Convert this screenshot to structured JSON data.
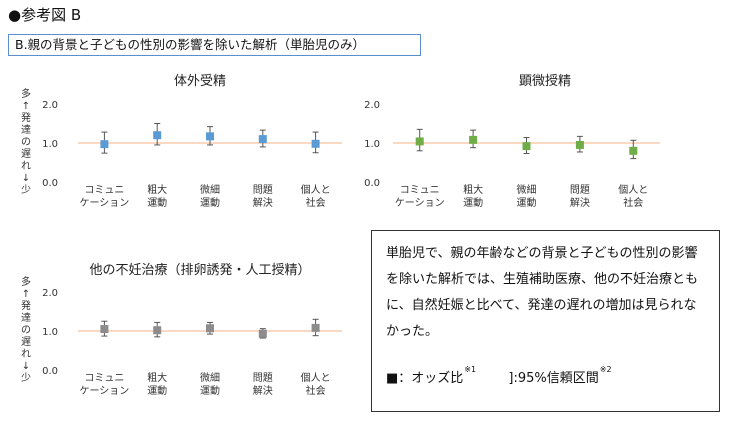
{
  "heading": "●参考図 B",
  "subtitle": "B.親の背景と子どもの性別の影響を除いた解析（単胎児のみ）",
  "y_axis_label": "多↑発達の遅れ↓少",
  "note": {
    "text": "単胎児で、親の年齢などの背景と子どもの性別の影響を除いた解析では、生殖補助医療、他の不妊治療ともに、自然妊娠と比べて、発達の遅れの増加は見られなかった。",
    "legend_marker": "■：オッズ比",
    "legend_marker_sup": "※1",
    "legend_ci": "]:95%信頼区間",
    "legend_ci_sup": "※2"
  },
  "chart_data": [
    {
      "type": "scatter",
      "title": "体外受精",
      "categories": [
        "コミュニケーション",
        "粗大運動",
        "微細運動",
        "問題解決",
        "個人と社会"
      ],
      "category_lines": [
        [
          "コミュニ",
          "ケーション"
        ],
        [
          "粗大",
          "運動"
        ],
        [
          "微細",
          "運動"
        ],
        [
          "問題",
          "解決"
        ],
        [
          "個人と",
          "社会"
        ]
      ],
      "series": [
        {
          "values": [
            0.97,
            1.2,
            1.17,
            1.1,
            0.98
          ],
          "lower": [
            0.74,
            0.95,
            0.95,
            0.9,
            0.75
          ],
          "upper": [
            1.28,
            1.5,
            1.42,
            1.33,
            1.28
          ]
        }
      ],
      "ylim": [
        0,
        2.0
      ],
      "yticks": [
        "0.0",
        "1.0",
        "2.0"
      ],
      "reference_line": 1.0,
      "marker_color": "#5b9bd5",
      "reference_color": "#f4b183"
    },
    {
      "type": "scatter",
      "title": "顕微授精",
      "categories": [
        "コミュニケーション",
        "粗大運動",
        "微細運動",
        "問題解決",
        "個人と社会"
      ],
      "category_lines": [
        [
          "コミュニ",
          "ケーション"
        ],
        [
          "粗大",
          "運動"
        ],
        [
          "微細",
          "運動"
        ],
        [
          "問題",
          "解決"
        ],
        [
          "個人と",
          "社会"
        ]
      ],
      "series": [
        {
          "values": [
            1.04,
            1.08,
            0.92,
            0.95,
            0.8
          ],
          "lower": [
            0.8,
            0.88,
            0.73,
            0.77,
            0.6
          ],
          "upper": [
            1.35,
            1.33,
            1.14,
            1.17,
            1.07
          ]
        }
      ],
      "ylim": [
        0,
        2.0
      ],
      "yticks": [
        "0.0",
        "1.0",
        "2.0"
      ],
      "reference_line": 1.0,
      "marker_color": "#70ad47",
      "reference_color": "#f4b183"
    },
    {
      "type": "scatter",
      "title": "他の不妊治療（排卵誘発・人工授精）",
      "categories": [
        "コミュニケーション",
        "粗大運動",
        "微細運動",
        "問題解決",
        "個人と社会"
      ],
      "category_lines": [
        [
          "コミュニ",
          "ケーション"
        ],
        [
          "粗大",
          "運動"
        ],
        [
          "微細",
          "運動"
        ],
        [
          "問題",
          "解決"
        ],
        [
          "個人と",
          "社会"
        ]
      ],
      "series": [
        {
          "values": [
            1.05,
            1.02,
            1.07,
            0.93,
            1.08
          ],
          "lower": [
            0.87,
            0.85,
            0.92,
            0.82,
            0.88
          ],
          "upper": [
            1.25,
            1.22,
            1.22,
            1.06,
            1.3
          ]
        }
      ],
      "ylim": [
        0,
        2.0
      ],
      "yticks": [
        "0.0",
        "1.0",
        "2.0"
      ],
      "reference_line": 1.0,
      "marker_color": "#8c8c8c",
      "reference_color": "#f4b183"
    }
  ]
}
